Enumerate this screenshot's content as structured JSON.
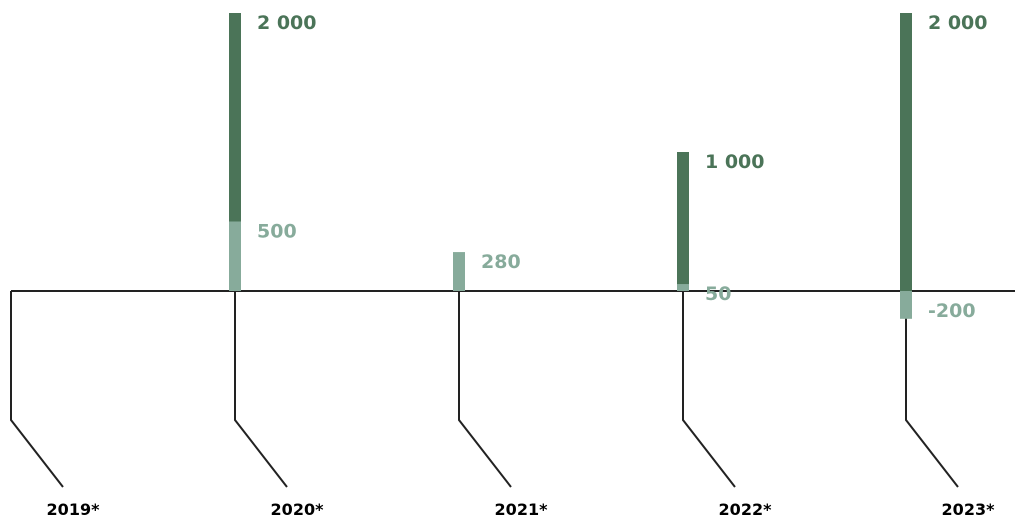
{
  "colors": {
    "dark_bar": "#4b7458",
    "light_bar": "#87ab9b",
    "axis_line": "#222222",
    "year_text": "#000000"
  },
  "chart_data": {
    "type": "bar",
    "categories": [
      "2019*",
      "2020*",
      "2021*",
      "2022*",
      "2023*"
    ],
    "series": [
      {
        "values": [
          null,
          2000,
          null,
          1000,
          2000
        ],
        "labels": [
          "",
          "2 000",
          "",
          "1 000",
          "2 000"
        ],
        "color": "#4b7458"
      },
      {
        "values": [
          null,
          500,
          280,
          50,
          -200
        ],
        "labels": [
          "",
          "500",
          "280",
          "50",
          "-200"
        ],
        "color": "#87ab9b"
      }
    ],
    "ylim": [
      -200,
      2000
    ],
    "grid": false,
    "title": "",
    "xlabel": "",
    "ylabel": ""
  }
}
